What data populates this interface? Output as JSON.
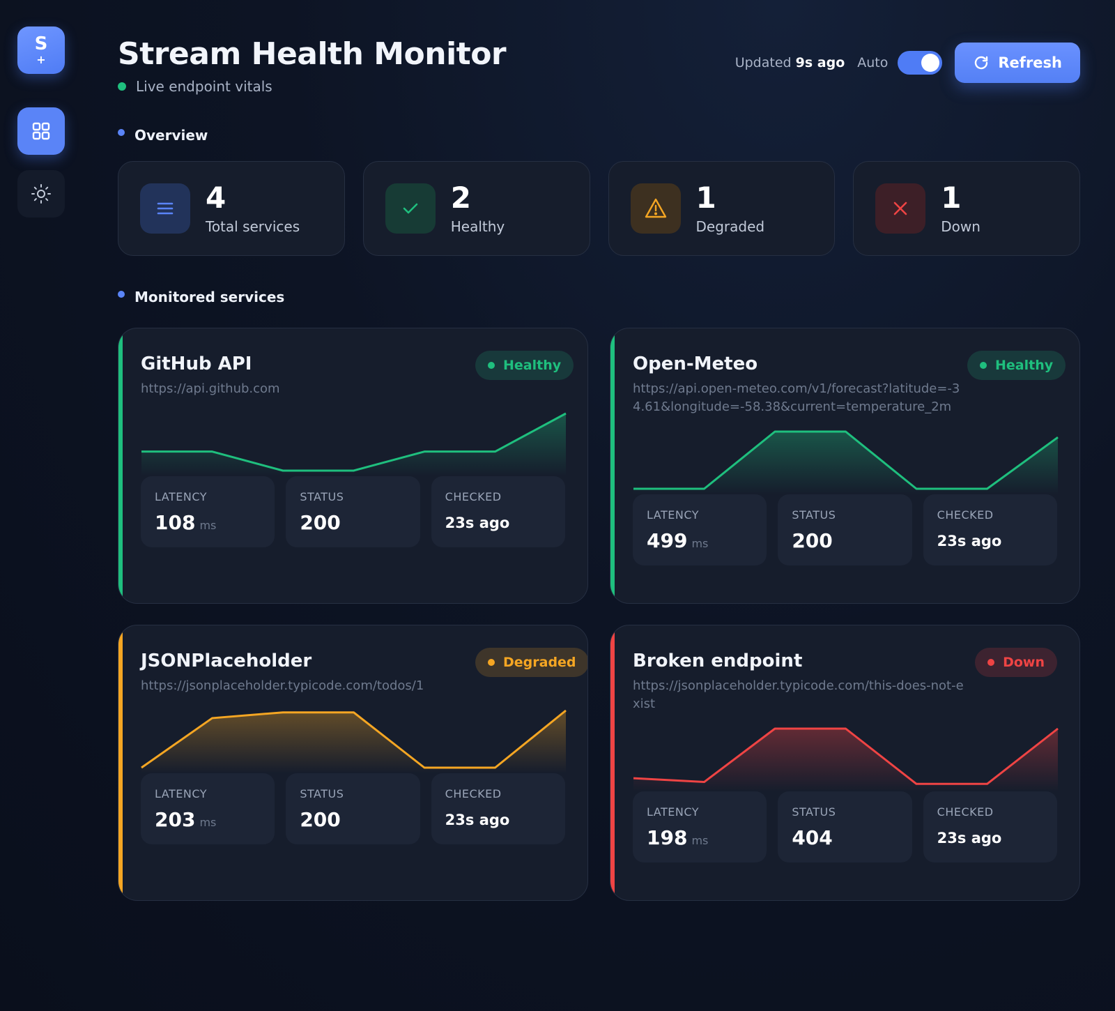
{
  "app": {
    "logo_letter": "S",
    "logo_sub": "+",
    "title": "Stream Health Monitor",
    "subtitle": "Live endpoint vitals"
  },
  "sidebar": {
    "items": [
      {
        "icon": "grid-icon",
        "active": true
      },
      {
        "icon": "sun-icon",
        "active": false
      }
    ]
  },
  "controls": {
    "updated_prefix": "Updated",
    "updated_value": "9s ago",
    "auto_label": "Auto",
    "auto_enabled": true,
    "refresh_label": "Refresh"
  },
  "overview": {
    "label": "Overview",
    "stats": [
      {
        "value": "4",
        "label": "Total services",
        "icon": "list-icon",
        "color": "#5a84f7"
      },
      {
        "value": "2",
        "label": "Healthy",
        "icon": "check-icon",
        "color": "#1fbf7e"
      },
      {
        "value": "1",
        "label": "Degraded",
        "icon": "warning-icon",
        "color": "#f5a623"
      },
      {
        "value": "1",
        "label": "Down",
        "icon": "x-icon",
        "color": "#ef4444"
      }
    ]
  },
  "services": {
    "label": "Monitored services",
    "metric_labels": {
      "latency": "LATENCY",
      "status": "STATUS",
      "checked": "CHECKED"
    },
    "unit": "ms",
    "items": [
      {
        "name": "GitHub API",
        "url": "https://api.github.com",
        "status_text": "Healthy",
        "color": "#1fbf7e",
        "latency": "108",
        "status": "200",
        "checked": "23s ago",
        "history": [
          2,
          2,
          1,
          1,
          2,
          2,
          4
        ]
      },
      {
        "name": "Open-Meteo",
        "url": "https://api.open-meteo.com/v1/forecast?latitude=-34.61&longitude=-58.38&current=temperature_2m",
        "status_text": "Healthy",
        "color": "#1fbf7e",
        "latency": "499",
        "status": "200",
        "checked": "23s ago",
        "history": [
          1,
          1,
          4,
          4,
          1,
          1,
          3.7
        ]
      },
      {
        "name": "JSONPlaceholder",
        "url": "https://jsonplaceholder.typicode.com/todos/1",
        "status_text": "Degraded",
        "color": "#f5a623",
        "latency": "203",
        "status": "200",
        "checked": "23s ago",
        "history": [
          1,
          3.6,
          3.9,
          3.9,
          1,
          1,
          4
        ]
      },
      {
        "name": "Broken endpoint",
        "url": "https://jsonplaceholder.typicode.com/this-does-not-exist",
        "status_text": "Down",
        "color": "#ef4444",
        "latency": "198",
        "status": "404",
        "checked": "23s ago",
        "history": [
          1.4,
          1.2,
          4,
          4,
          1.1,
          1.1,
          4
        ]
      }
    ]
  }
}
